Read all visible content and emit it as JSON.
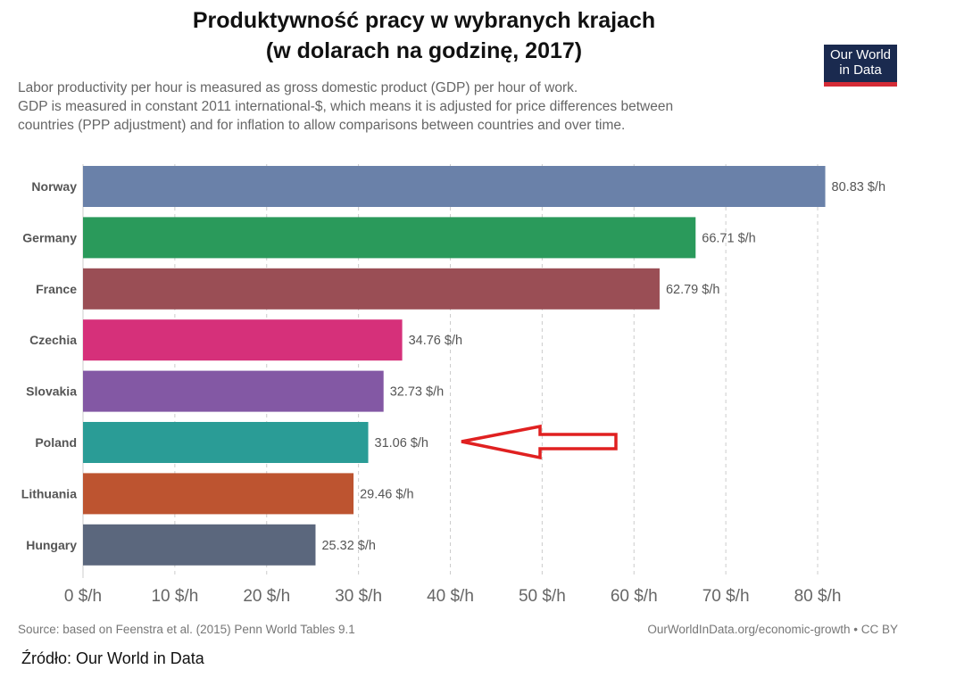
{
  "title_line1": "Produktywność pracy w wybranych krajach",
  "title_line2": "(w dolarach na godzinę, 2017)",
  "subtitle": [
    "Labor productivity per hour is measured as gross domestic product (GDP) per hour of work.",
    "GDP is measured in constant 2011 international-$, which means it is adjusted for price differences between",
    "countries (PPP adjustment) and for inflation to allow comparisons between countries and over time."
  ],
  "logo": {
    "line1": "Our World",
    "line2": "in Data"
  },
  "source": "Source: based on Feenstra et al. (2015) Penn World Tables 9.1",
  "url": "OurWorldInData.org/economic-growth • CC BY",
  "zrodlo": "Źródło: Our World in Data",
  "chart_data": {
    "type": "bar",
    "orientation": "horizontal",
    "categories": [
      "Norway",
      "Germany",
      "France",
      "Czechia",
      "Slovakia",
      "Poland",
      "Lithuania",
      "Hungary"
    ],
    "values": [
      80.83,
      66.71,
      62.79,
      34.76,
      32.73,
      31.06,
      29.46,
      25.32
    ],
    "value_labels": [
      "80.83 $/h",
      "66.71 $/h",
      "62.79 $/h",
      "34.76 $/h",
      "32.73 $/h",
      "31.06 $/h",
      "29.46 $/h",
      "25.32 $/h"
    ],
    "colors": [
      "#6a81a9",
      "#2a9a5b",
      "#9a4e55",
      "#d6307a",
      "#8358a4",
      "#2a9c96",
      "#bd5430",
      "#5b677d"
    ],
    "xlim": [
      0,
      80
    ],
    "xticks": [
      "0 $/h",
      "10 $/h",
      "20 $/h",
      "30 $/h",
      "40 $/h",
      "50 $/h",
      "60 $/h",
      "70 $/h",
      "80 $/h"
    ],
    "grid": "vertical dashed",
    "annotation": {
      "type": "red outline arrow",
      "points_to": "Poland",
      "color": "#e02020"
    }
  }
}
